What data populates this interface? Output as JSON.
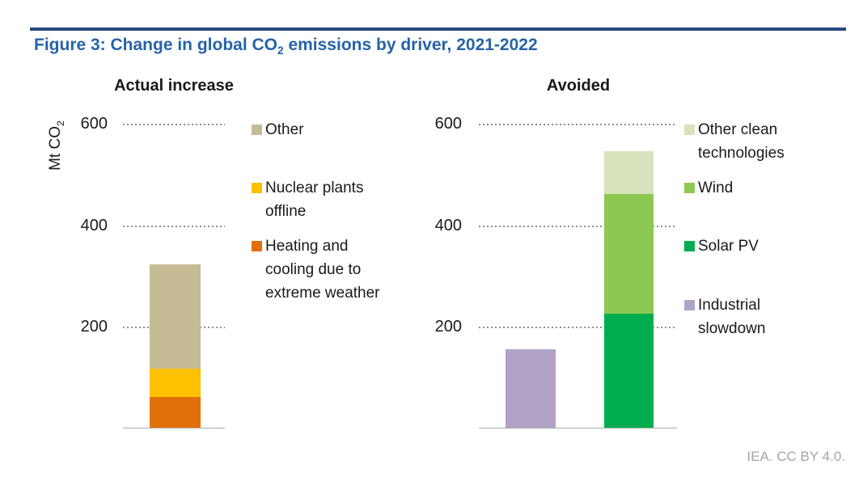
{
  "figure": {
    "title_prefix": "Figure 3: Change in global CO",
    "title_sub": "2",
    "title_suffix": " emissions by driver, 2021-2022",
    "credit": "IEA. CC BY 4.0."
  },
  "axis": {
    "unit_prefix": "Mt CO",
    "unit_sub": "2",
    "ticks": {
      "t600": "600",
      "t400": "400",
      "t200": "200"
    }
  },
  "colors": {
    "title_blue": "#2663A8",
    "rule_navy": "#274B84",
    "grid_dot_gray": "#8F8F8F",
    "baseline_gray": "#ABABAB",
    "credit_gray": "#A6A6A6",
    "other": "#C5BC95",
    "nuclear_offline": "#FFC000",
    "heating_cooling": "#E2700A",
    "other_clean_technologies": "#D6E3BD",
    "wind": "#8DC950",
    "solar_pv": "#00AE50",
    "industrial_slowdown": "#B1A2C8"
  },
  "chart_data": [
    {
      "type": "bar",
      "stacked": true,
      "title": "Actual increase",
      "ylabel": "Mt CO2",
      "ylim": [
        0,
        650
      ],
      "gridlines": [
        200,
        400,
        600
      ],
      "grid_style": "dotted",
      "legend_position": "right",
      "categories": [
        ""
      ],
      "series": [
        {
          "name": "Heating and cooling due to extreme weather",
          "color": "#E2700A",
          "values": [
            60
          ]
        },
        {
          "name": "Nuclear plants offline",
          "color": "#FFC000",
          "values": [
            55
          ]
        },
        {
          "name": "Other",
          "color": "#C5BC95",
          "values": [
            205
          ]
        }
      ],
      "total": 320
    },
    {
      "type": "bar",
      "stacked": true,
      "title": "Avoided",
      "ylabel": "Mt CO2",
      "ylim": [
        0,
        650
      ],
      "gridlines": [
        200,
        400,
        600
      ],
      "grid_style": "dotted",
      "legend_position": "right",
      "categories": [
        "",
        ""
      ],
      "series": [
        {
          "name": "Industrial slowdown",
          "color": "#B1A2C8",
          "values": [
            155,
            0
          ]
        },
        {
          "name": "Solar PV",
          "color": "#00AE50",
          "values": [
            0,
            225
          ]
        },
        {
          "name": "Wind",
          "color": "#8DC950",
          "values": [
            0,
            235
          ]
        },
        {
          "name": "Other clean technologies",
          "color": "#D6E3BD",
          "values": [
            0,
            85
          ]
        }
      ],
      "totals": [
        155,
        545
      ]
    }
  ],
  "legends": {
    "left": [
      {
        "label": "Other",
        "color": "#C5BC95"
      },
      {
        "label": "Nuclear plants offline",
        "color": "#FFC000"
      },
      {
        "label": "Heating and cooling due to extreme weather",
        "color": "#E2700A"
      }
    ],
    "right": [
      {
        "label": "Other clean technologies",
        "color": "#D6E3BD"
      },
      {
        "label": "Wind",
        "color": "#8DC950"
      },
      {
        "label": "Solar PV",
        "color": "#00AE50"
      },
      {
        "label": "Industrial slowdown",
        "color": "#B1A2C8"
      }
    ]
  }
}
